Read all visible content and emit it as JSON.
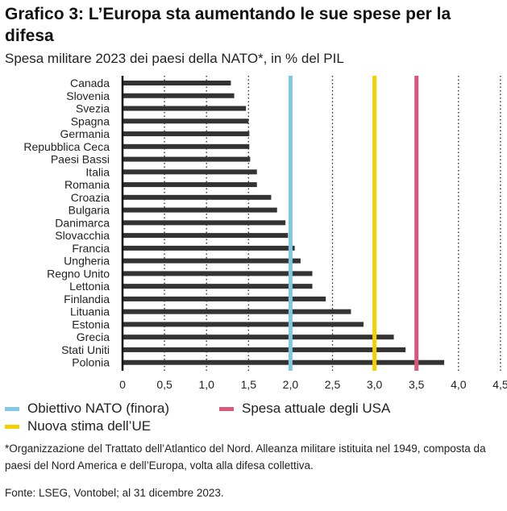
{
  "title": "Grafico 3: L’Europa sta aumentando le sue spese per la difesa",
  "subtitle": "Spesa militare 2023 dei paesi della NATO*,  in % del PIL",
  "chart_data": {
    "type": "bar",
    "orientation": "horizontal",
    "categories": [
      "Canada",
      "Slovenia",
      "Svezia",
      "Spagna",
      "Germania",
      "Repubblica Ceca",
      "Paesi Bassi",
      "Italia",
      "Romania",
      "Croazia",
      "Bulgaria",
      "Danimarca",
      "Slovacchia",
      "Francia",
      "Ungheria",
      "Regno Unito",
      "Lettonia",
      "Finlandia",
      "Lituania",
      "Estonia",
      "Grecia",
      "Stati Uniti",
      "Polonia"
    ],
    "values": [
      1.29,
      1.33,
      1.47,
      1.5,
      1.51,
      1.51,
      1.52,
      1.6,
      1.6,
      1.77,
      1.84,
      1.94,
      1.97,
      2.05,
      2.12,
      2.26,
      2.26,
      2.42,
      2.72,
      2.87,
      3.23,
      3.37,
      3.83
    ],
    "xlim": [
      0,
      4.5
    ],
    "xticks": [
      "0",
      "0,5",
      "1,0",
      "1,5",
      "2,0",
      "2,5",
      "3,0",
      "3,5",
      "4,0",
      "4,5"
    ],
    "reference_lines": [
      {
        "label": "Obiettivo NATO (finora)",
        "value": 2.0,
        "color": "#7ec8e3"
      },
      {
        "label": "Spesa attuale degli USA",
        "value": 3.5,
        "color": "#d9577a"
      },
      {
        "label": "Nuova stima dell’UE",
        "value": 3.0,
        "color": "#f5d000"
      }
    ],
    "bar_color": "#333333",
    "grid": "vertical dotted"
  },
  "footnote": "*Organizzazione del Trattato dell’Atlantico del Nord. Alleanza militare istituita nel 1949, composta da paesi del Nord America e dell’Europa, volta alla difesa collettiva.",
  "source": "Fonte: LSEG, Vontobel; al 31 dicembre 2023."
}
